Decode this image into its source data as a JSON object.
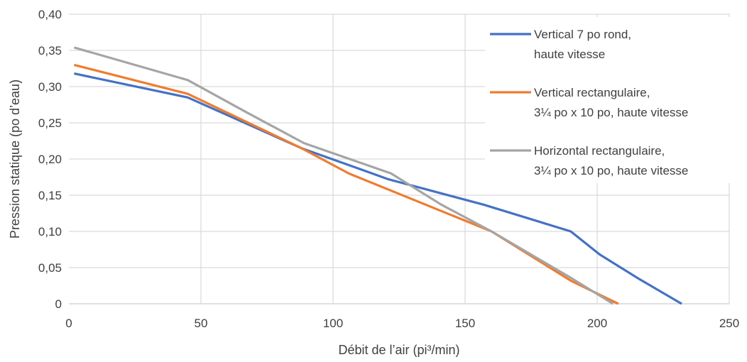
{
  "chart_data": {
    "type": "line",
    "title": "",
    "xlabel": "Débit de l’air (pi³/min)",
    "ylabel": "Pression statique (po d’eau)",
    "xlim": [
      0,
      250
    ],
    "ylim": [
      0,
      0.4
    ],
    "xticks": [
      0,
      50,
      100,
      150,
      200,
      250
    ],
    "xtick_labels": [
      "0",
      "50",
      "100",
      "150",
      "200",
      "250"
    ],
    "yticks": [
      0,
      0.05,
      0.1,
      0.15,
      0.2,
      0.25,
      0.3,
      0.35,
      0.4
    ],
    "ytick_labels": [
      "0",
      "0,05",
      "0,10",
      "0,15",
      "0,20",
      "0,25",
      "0,30",
      "0,35",
      "0,40"
    ],
    "grid": true,
    "legend_position": "right",
    "series": [
      {
        "name": "Vertical 7 po rond, haute vitesse",
        "legend_lines": [
          "Vertical 7 po rond,",
          "haute vitesse"
        ],
        "color": "#4472C4",
        "x": [
          2,
          45,
          88,
          121,
          157,
          190,
          201,
          216,
          232
        ],
        "y": [
          0.318,
          0.285,
          0.215,
          0.172,
          0.137,
          0.1,
          0.068,
          0.034,
          0
        ]
      },
      {
        "name": "Vertical rectangulaire, 3¼ po x 10 po, haute vitesse",
        "legend_lines": [
          "Vertical rectangulaire,",
          "3¼ po x 10 po, haute vitesse"
        ],
        "color": "#ED7D31",
        "x": [
          2,
          45,
          88,
          106,
          160,
          190,
          208
        ],
        "y": [
          0.33,
          0.29,
          0.215,
          0.18,
          0.1,
          0.032,
          0
        ]
      },
      {
        "name": "Horizontal rectangulaire, 3¼ po x 10 po, haute vitesse",
        "legend_lines": [
          "Horizontal rectangulaire,",
          "3¼ po x 10 po, haute vitesse"
        ],
        "color": "#A5A5A5",
        "x": [
          2,
          45,
          67,
          89,
          122,
          141,
          160,
          190,
          206
        ],
        "y": [
          0.354,
          0.309,
          0.265,
          0.222,
          0.18,
          0.137,
          0.1,
          0.036,
          0
        ]
      }
    ]
  }
}
